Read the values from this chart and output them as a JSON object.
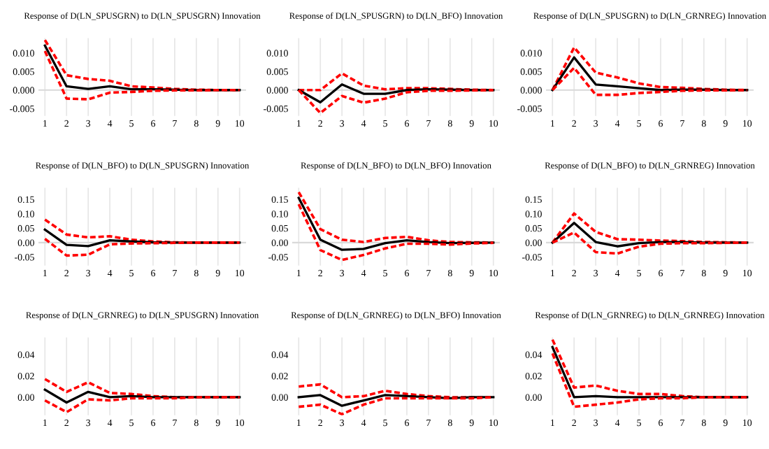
{
  "chart_data": [
    {
      "type": "line",
      "title": "Response of D(LN_SPUSGRN) to D(LN_SPUSGRN) Innovation",
      "categories": [
        "1",
        "2",
        "3",
        "4",
        "5",
        "6",
        "7",
        "8",
        "9",
        "10"
      ],
      "ylim": [
        -0.007,
        0.014
      ],
      "yticks": [
        {
          "value": -0.005,
          "label": "-0.005"
        },
        {
          "value": 0,
          "label": "0.000"
        },
        {
          "value": 0.005,
          "label": "0.005"
        },
        {
          "value": 0.01,
          "label": "0.010"
        }
      ],
      "grid": "x",
      "ref_lines": [
        {
          "axis": "y",
          "value": 0,
          "color": "#d9d9d9"
        }
      ],
      "series": [
        {
          "color": "#ff0000",
          "line_style": "dashed",
          "values": [
            0.0135,
            0.004,
            0.003,
            0.0025,
            0.001,
            0.0007,
            0.0003,
            0.0001,
            0,
            0
          ]
        },
        {
          "color": "#000000",
          "line_style": "solid",
          "values": [
            0.012,
            0.001,
            0.0003,
            0.001,
            0.0002,
            0.0002,
            0.0001,
            0,
            0,
            0
          ]
        },
        {
          "color": "#ff0000",
          "line_style": "dashed",
          "values": [
            0.0105,
            -0.0023,
            -0.0025,
            -0.0007,
            -0.0005,
            -0.0002,
            -0.0001,
            -0.0001,
            0,
            0
          ]
        }
      ]
    },
    {
      "type": "line",
      "title": "Response of D(LN_SPUSGRN) to D(LN_BFO) Innovation",
      "categories": [
        "1",
        "2",
        "3",
        "4",
        "5",
        "6",
        "7",
        "8",
        "9",
        "10"
      ],
      "ylim": [
        -0.007,
        0.014
      ],
      "yticks": [
        {
          "value": -0.005,
          "label": "-0.005"
        },
        {
          "value": 0,
          "label": "0.000"
        },
        {
          "value": 0.005,
          "label": "0.005"
        },
        {
          "value": 0.01,
          "label": "0.010"
        }
      ],
      "grid": "x",
      "ref_lines": [
        {
          "axis": "y",
          "value": 0,
          "color": "#d9d9d9"
        }
      ],
      "series": [
        {
          "color": "#ff0000",
          "line_style": "dashed",
          "values": [
            0,
            0,
            0.0045,
            0.0012,
            0.0002,
            0.0005,
            0.0005,
            0.0003,
            0.0001,
            0
          ]
        },
        {
          "color": "#000000",
          "line_style": "solid",
          "values": [
            0,
            -0.0033,
            0.0015,
            -0.001,
            -0.001,
            0,
            0.0002,
            0.0001,
            0,
            0
          ]
        },
        {
          "color": "#ff0000",
          "line_style": "dashed",
          "values": [
            0,
            -0.0062,
            -0.0016,
            -0.0034,
            -0.0023,
            -0.0006,
            -0.0002,
            -0.0002,
            -0.0001,
            0
          ]
        }
      ]
    },
    {
      "type": "line",
      "title": "Response of D(LN_SPUSGRN) to D(LN_GRNREG) Innovation",
      "categories": [
        "1",
        "2",
        "3",
        "4",
        "5",
        "6",
        "7",
        "8",
        "9",
        "10"
      ],
      "ylim": [
        -0.007,
        0.014
      ],
      "yticks": [
        {
          "value": -0.005,
          "label": "-0.005"
        },
        {
          "value": 0,
          "label": "0.000"
        },
        {
          "value": 0.005,
          "label": "0.005"
        },
        {
          "value": 0.01,
          "label": "0.010"
        }
      ],
      "grid": "x",
      "ref_lines": [
        {
          "axis": "y",
          "value": 0,
          "color": "#d9d9d9"
        }
      ],
      "series": [
        {
          "color": "#ff0000",
          "line_style": "dashed",
          "values": [
            0,
            0.0115,
            0.0047,
            0.0034,
            0.0018,
            0.0008,
            0.0006,
            0.0003,
            0.0001,
            0
          ]
        },
        {
          "color": "#000000",
          "line_style": "solid",
          "values": [
            0,
            0.0088,
            0.0015,
            0.001,
            0.0005,
            0,
            0.0001,
            0.0001,
            0,
            0
          ]
        },
        {
          "color": "#ff0000",
          "line_style": "dashed",
          "values": [
            0,
            0.006,
            -0.0013,
            -0.0013,
            -0.0008,
            -0.0005,
            -0.0002,
            -0.0001,
            -0.0001,
            0
          ]
        }
      ]
    },
    {
      "type": "line",
      "title": "Response of D(LN_BFO) to D(LN_SPUSGRN) Innovation",
      "categories": [
        "1",
        "2",
        "3",
        "4",
        "5",
        "6",
        "7",
        "8",
        "9",
        "10"
      ],
      "ylim": [
        -0.08,
        0.19
      ],
      "yticks": [
        {
          "value": -0.05,
          "label": "-0.05"
        },
        {
          "value": 0,
          "label": "0.00"
        },
        {
          "value": 0.05,
          "label": "0.05"
        },
        {
          "value": 0.1,
          "label": "0.10"
        },
        {
          "value": 0.15,
          "label": "0.15"
        }
      ],
      "grid": "x",
      "ref_lines": [
        {
          "axis": "y",
          "value": 0,
          "color": "#d9d9d9"
        }
      ],
      "series": [
        {
          "color": "#ff0000",
          "line_style": "dashed",
          "values": [
            0.08,
            0.028,
            0.018,
            0.022,
            0.01,
            0.004,
            0.001,
            0,
            0,
            0
          ]
        },
        {
          "color": "#000000",
          "line_style": "solid",
          "values": [
            0.045,
            -0.008,
            -0.012,
            0.008,
            0.004,
            0.001,
            0,
            0,
            0,
            0
          ]
        },
        {
          "color": "#ff0000",
          "line_style": "dashed",
          "values": [
            0.013,
            -0.045,
            -0.042,
            -0.006,
            -0.003,
            -0.002,
            -0.001,
            0,
            0,
            0
          ]
        }
      ]
    },
    {
      "type": "line",
      "title": "Response of D(LN_BFO) to D(LN_BFO) Innovation",
      "categories": [
        "1",
        "2",
        "3",
        "4",
        "5",
        "6",
        "7",
        "8",
        "9",
        "10"
      ],
      "ylim": [
        -0.08,
        0.19
      ],
      "yticks": [
        {
          "value": -0.05,
          "label": "-0.05"
        },
        {
          "value": 0,
          "label": "0.00"
        },
        {
          "value": 0.05,
          "label": "0.05"
        },
        {
          "value": 0.1,
          "label": "0.10"
        },
        {
          "value": 0.15,
          "label": "0.15"
        }
      ],
      "grid": "x",
      "ref_lines": [
        {
          "axis": "y",
          "value": 0,
          "color": "#d9d9d9"
        }
      ],
      "series": [
        {
          "color": "#ff0000",
          "line_style": "dashed",
          "values": [
            0.175,
            0.047,
            0.01,
            0.002,
            0.016,
            0.02,
            0.008,
            0.002,
            0.001,
            0
          ]
        },
        {
          "color": "#000000",
          "line_style": "solid",
          "values": [
            0.155,
            0.01,
            -0.025,
            -0.022,
            -0.002,
            0.008,
            0.002,
            -0.002,
            -0.001,
            0
          ]
        },
        {
          "color": "#ff0000",
          "line_style": "dashed",
          "values": [
            0.133,
            -0.026,
            -0.06,
            -0.043,
            -0.02,
            -0.004,
            -0.004,
            -0.007,
            -0.003,
            -0.001
          ]
        }
      ]
    },
    {
      "type": "line",
      "title": "Response of D(LN_BFO) to D(LN_GRNREG) Innovation",
      "categories": [
        "1",
        "2",
        "3",
        "4",
        "5",
        "6",
        "7",
        "8",
        "9",
        "10"
      ],
      "ylim": [
        -0.08,
        0.19
      ],
      "yticks": [
        {
          "value": -0.05,
          "label": "-0.05"
        },
        {
          "value": 0,
          "label": "0.00"
        },
        {
          "value": 0.05,
          "label": "0.05"
        },
        {
          "value": 0.1,
          "label": "0.10"
        },
        {
          "value": 0.15,
          "label": "0.15"
        }
      ],
      "grid": "x",
      "ref_lines": [
        {
          "axis": "y",
          "value": 0,
          "color": "#d9d9d9"
        }
      ],
      "series": [
        {
          "color": "#ff0000",
          "line_style": "dashed",
          "values": [
            0,
            0.101,
            0.037,
            0.012,
            0.01,
            0.007,
            0.005,
            0.002,
            0.001,
            0
          ]
        },
        {
          "color": "#000000",
          "line_style": "solid",
          "values": [
            0,
            0.068,
            0.002,
            -0.013,
            -0.002,
            0.002,
            0.002,
            0,
            0,
            0
          ]
        },
        {
          "color": "#ff0000",
          "line_style": "dashed",
          "values": [
            0,
            0.035,
            -0.033,
            -0.038,
            -0.014,
            -0.004,
            -0.002,
            -0.002,
            -0.001,
            0
          ]
        }
      ]
    },
    {
      "type": "line",
      "title": "Response of D(LN_GRNREG) to D(LN_SPUSGRN) Innovation",
      "categories": [
        "1",
        "2",
        "3",
        "4",
        "5",
        "6",
        "7",
        "8",
        "9",
        "10"
      ],
      "ylim": [
        -0.017,
        0.056
      ],
      "yticks": [
        {
          "value": 0,
          "label": "0.00"
        },
        {
          "value": 0.02,
          "label": "0.02"
        },
        {
          "value": 0.04,
          "label": "0.04"
        }
      ],
      "grid": "x",
      "series": [
        {
          "color": "#ff0000",
          "line_style": "dashed",
          "values": [
            0.017,
            0.005,
            0.014,
            0.004,
            0.003,
            0.001,
            0,
            0,
            0,
            0
          ]
        },
        {
          "color": "#000000",
          "line_style": "solid",
          "values": [
            0.007,
            -0.005,
            0.005,
            0,
            0.001,
            0,
            0,
            0,
            0,
            0
          ]
        },
        {
          "color": "#ff0000",
          "line_style": "dashed",
          "values": [
            -0.003,
            -0.014,
            -0.002,
            -0.003,
            -0.001,
            -0.001,
            -0.001,
            0,
            0,
            0
          ]
        }
      ]
    },
    {
      "type": "line",
      "title": "Response of D(LN_GRNREG) to D(LN_BFO) Innovation",
      "categories": [
        "1",
        "2",
        "3",
        "4",
        "5",
        "6",
        "7",
        "8",
        "9",
        "10"
      ],
      "ylim": [
        -0.017,
        0.056
      ],
      "yticks": [
        {
          "value": 0,
          "label": "0.00"
        },
        {
          "value": 0.02,
          "label": "0.02"
        },
        {
          "value": 0.04,
          "label": "0.04"
        }
      ],
      "grid": "x",
      "series": [
        {
          "color": "#ff0000",
          "line_style": "dashed",
          "values": [
            0.01,
            0.012,
            0,
            0.001,
            0.006,
            0.003,
            0.001,
            0,
            0,
            0
          ]
        },
        {
          "color": "#000000",
          "line_style": "solid",
          "values": [
            0,
            0.002,
            -0.008,
            -0.003,
            0.002,
            0.001,
            0,
            -0.001,
            0,
            0
          ]
        },
        {
          "color": "#ff0000",
          "line_style": "dashed",
          "values": [
            -0.009,
            -0.007,
            -0.016,
            -0.007,
            -0.001,
            -0.001,
            -0.001,
            -0.001,
            -0.001,
            0
          ]
        }
      ]
    },
    {
      "type": "line",
      "title": "Response of D(LN_GRNREG) to D(LN_GRNREG) Innovation",
      "categories": [
        "1",
        "2",
        "3",
        "4",
        "5",
        "6",
        "7",
        "8",
        "9",
        "10"
      ],
      "ylim": [
        -0.017,
        0.056
      ],
      "yticks": [
        {
          "value": 0,
          "label": "0.00"
        },
        {
          "value": 0.02,
          "label": "0.02"
        },
        {
          "value": 0.04,
          "label": "0.04"
        }
      ],
      "grid": "x",
      "series": [
        {
          "color": "#ff0000",
          "line_style": "dashed",
          "values": [
            0.054,
            0.009,
            0.011,
            0.006,
            0.003,
            0.003,
            0.001,
            0,
            0,
            0
          ]
        },
        {
          "color": "#000000",
          "line_style": "solid",
          "values": [
            0.047,
            0,
            0.001,
            0,
            0,
            0,
            0,
            0,
            0,
            0
          ]
        },
        {
          "color": "#ff0000",
          "line_style": "dashed",
          "values": [
            0.041,
            -0.009,
            -0.007,
            -0.005,
            -0.002,
            -0.001,
            -0.001,
            0,
            0,
            0
          ]
        }
      ]
    }
  ]
}
